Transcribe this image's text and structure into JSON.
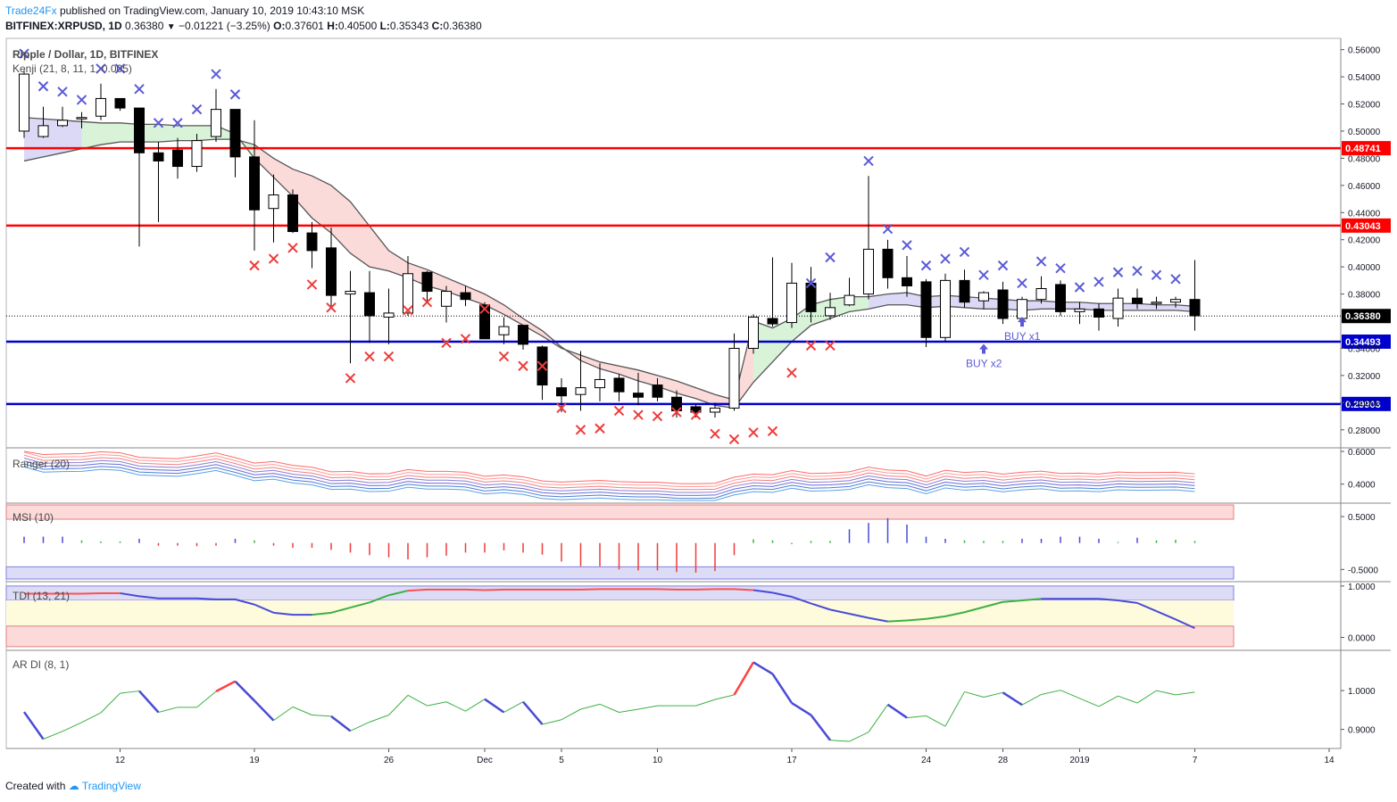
{
  "header": {
    "author": "Trade24Fx",
    "published_text": "published on TradingView.com, January 10, 2019 10:43:10 MSK",
    "symbol": "BITFINEX:XRPUSD, 1D",
    "last": "0.36380",
    "change": "−0.01221 (−3.25%)",
    "o_label": "O:",
    "o": "0.37601",
    "h_label": "H:",
    "h": "0.40500",
    "l_label": "L:",
    "l": "0.35343",
    "c_label": "C:",
    "c": "0.36380"
  },
  "legend": {
    "title": "Ripple / Dollar, 1D, BITFINEX",
    "indicator": "Kenji (21, 8, 11, 1, 0.005)",
    "ranger": "Ranger (20)",
    "msi": "MSI (10)",
    "tdi": "TDI (13, 21)",
    "ardi": "AR DI (8, 1)"
  },
  "footer": {
    "created_with": "Created with",
    "brand": "TradingView"
  },
  "colors": {
    "up": "#ffffff",
    "down": "#000000",
    "resistance": "#ff0000",
    "support": "#0000cc",
    "buy_marker": "#5b5bd6",
    "sell_marker": "#ef3b3b",
    "band_line": "#555555"
  },
  "chart_data": [
    {
      "type": "candlestick",
      "title": "Ripple / Dollar, 1D, BITFINEX",
      "ylim": [
        0.27,
        0.567
      ],
      "y_ticks": [
        "0.56000",
        "0.54000",
        "0.52000",
        "0.50000",
        "0.48000",
        "0.46000",
        "0.44000",
        "0.42000",
        "0.40000",
        "0.38000",
        "0.34000",
        "0.32000",
        "0.30000",
        "0.28000"
      ],
      "x_ticks": [
        "12",
        "19",
        "26",
        "Dec",
        "5",
        "10",
        "17",
        "24",
        "28",
        "2019",
        "7",
        "14"
      ],
      "x_tick_index": [
        5,
        12,
        19,
        24,
        28,
        33,
        40,
        47,
        51,
        55,
        61,
        68
      ],
      "candles": [
        {
          "o": 0.5,
          "h": 0.545,
          "l": 0.495,
          "c": 0.542
        },
        {
          "o": 0.496,
          "h": 0.518,
          "l": 0.495,
          "c": 0.504
        },
        {
          "o": 0.504,
          "h": 0.518,
          "l": 0.503,
          "c": 0.508
        },
        {
          "o": 0.509,
          "h": 0.514,
          "l": 0.502,
          "c": 0.51
        },
        {
          "o": 0.511,
          "h": 0.535,
          "l": 0.508,
          "c": 0.524
        },
        {
          "o": 0.524,
          "h": 0.524,
          "l": 0.515,
          "c": 0.517
        },
        {
          "o": 0.517,
          "h": 0.517,
          "l": 0.415,
          "c": 0.484
        },
        {
          "o": 0.484,
          "h": 0.492,
          "l": 0.433,
          "c": 0.478
        },
        {
          "o": 0.486,
          "h": 0.495,
          "l": 0.465,
          "c": 0.474
        },
        {
          "o": 0.474,
          "h": 0.498,
          "l": 0.47,
          "c": 0.493
        },
        {
          "o": 0.496,
          "h": 0.531,
          "l": 0.492,
          "c": 0.516
        },
        {
          "o": 0.516,
          "h": 0.516,
          "l": 0.466,
          "c": 0.481
        },
        {
          "o": 0.481,
          "h": 0.508,
          "l": 0.412,
          "c": 0.442
        },
        {
          "o": 0.443,
          "h": 0.468,
          "l": 0.418,
          "c": 0.453
        },
        {
          "o": 0.453,
          "h": 0.457,
          "l": 0.425,
          "c": 0.426
        },
        {
          "o": 0.425,
          "h": 0.433,
          "l": 0.399,
          "c": 0.412
        },
        {
          "o": 0.414,
          "h": 0.429,
          "l": 0.369,
          "c": 0.379
        },
        {
          "o": 0.38,
          "h": 0.397,
          "l": 0.329,
          "c": 0.382
        },
        {
          "o": 0.381,
          "h": 0.397,
          "l": 0.344,
          "c": 0.364
        },
        {
          "o": 0.363,
          "h": 0.384,
          "l": 0.343,
          "c": 0.366
        },
        {
          "o": 0.366,
          "h": 0.408,
          "l": 0.364,
          "c": 0.395
        },
        {
          "o": 0.396,
          "h": 0.397,
          "l": 0.374,
          "c": 0.382
        },
        {
          "o": 0.371,
          "h": 0.386,
          "l": 0.359,
          "c": 0.382
        },
        {
          "o": 0.381,
          "h": 0.386,
          "l": 0.371,
          "c": 0.376
        },
        {
          "o": 0.372,
          "h": 0.374,
          "l": 0.349,
          "c": 0.347
        },
        {
          "o": 0.35,
          "h": 0.363,
          "l": 0.343,
          "c": 0.356
        },
        {
          "o": 0.357,
          "h": 0.357,
          "l": 0.339,
          "c": 0.343
        },
        {
          "o": 0.341,
          "h": 0.342,
          "l": 0.302,
          "c": 0.313
        },
        {
          "o": 0.311,
          "h": 0.318,
          "l": 0.293,
          "c": 0.305
        },
        {
          "o": 0.306,
          "h": 0.338,
          "l": 0.294,
          "c": 0.311
        },
        {
          "o": 0.311,
          "h": 0.329,
          "l": 0.301,
          "c": 0.317
        },
        {
          "o": 0.318,
          "h": 0.321,
          "l": 0.301,
          "c": 0.308
        },
        {
          "o": 0.307,
          "h": 0.322,
          "l": 0.298,
          "c": 0.304
        },
        {
          "o": 0.313,
          "h": 0.318,
          "l": 0.301,
          "c": 0.304
        },
        {
          "o": 0.304,
          "h": 0.309,
          "l": 0.289,
          "c": 0.294
        },
        {
          "o": 0.297,
          "h": 0.299,
          "l": 0.289,
          "c": 0.293
        },
        {
          "o": 0.293,
          "h": 0.3,
          "l": 0.289,
          "c": 0.296
        },
        {
          "o": 0.296,
          "h": 0.351,
          "l": 0.294,
          "c": 0.34
        },
        {
          "o": 0.34,
          "h": 0.365,
          "l": 0.336,
          "c": 0.363
        },
        {
          "o": 0.362,
          "h": 0.407,
          "l": 0.356,
          "c": 0.358
        },
        {
          "o": 0.359,
          "h": 0.403,
          "l": 0.355,
          "c": 0.388
        },
        {
          "o": 0.388,
          "h": 0.4,
          "l": 0.359,
          "c": 0.367
        },
        {
          "o": 0.364,
          "h": 0.381,
          "l": 0.361,
          "c": 0.37
        },
        {
          "o": 0.372,
          "h": 0.392,
          "l": 0.371,
          "c": 0.379
        },
        {
          "o": 0.38,
          "h": 0.467,
          "l": 0.376,
          "c": 0.413
        },
        {
          "o": 0.413,
          "h": 0.42,
          "l": 0.384,
          "c": 0.392
        },
        {
          "o": 0.392,
          "h": 0.408,
          "l": 0.378,
          "c": 0.386
        },
        {
          "o": 0.389,
          "h": 0.391,
          "l": 0.341,
          "c": 0.348
        },
        {
          "o": 0.348,
          "h": 0.395,
          "l": 0.345,
          "c": 0.39
        },
        {
          "o": 0.39,
          "h": 0.398,
          "l": 0.37,
          "c": 0.374
        },
        {
          "o": 0.375,
          "h": 0.382,
          "l": 0.369,
          "c": 0.381
        },
        {
          "o": 0.383,
          "h": 0.389,
          "l": 0.358,
          "c": 0.362
        },
        {
          "o": 0.362,
          "h": 0.378,
          "l": 0.359,
          "c": 0.376
        },
        {
          "o": 0.376,
          "h": 0.393,
          "l": 0.373,
          "c": 0.384
        },
        {
          "o": 0.387,
          "h": 0.39,
          "l": 0.364,
          "c": 0.367
        },
        {
          "o": 0.367,
          "h": 0.374,
          "l": 0.358,
          "c": 0.369
        },
        {
          "o": 0.369,
          "h": 0.373,
          "l": 0.353,
          "c": 0.363
        },
        {
          "o": 0.362,
          "h": 0.384,
          "l": 0.356,
          "c": 0.377
        },
        {
          "o": 0.377,
          "h": 0.384,
          "l": 0.369,
          "c": 0.373
        },
        {
          "o": 0.374,
          "h": 0.378,
          "l": 0.369,
          "c": 0.374
        },
        {
          "o": 0.374,
          "h": 0.378,
          "l": 0.37,
          "c": 0.376
        },
        {
          "o": 0.376,
          "h": 0.405,
          "l": 0.353,
          "c": 0.364
        }
      ],
      "upper_band": [
        0.51,
        0.509,
        0.508,
        0.507,
        0.506,
        0.506,
        0.505,
        0.505,
        0.504,
        0.504,
        0.504,
        0.498,
        0.48,
        0.466,
        0.452,
        0.436,
        0.425,
        0.41,
        0.4,
        0.397,
        0.392,
        0.386,
        0.382,
        0.377,
        0.372,
        0.365,
        0.357,
        0.349,
        0.34,
        0.335,
        0.33,
        0.327,
        0.324,
        0.32,
        0.316,
        0.311,
        0.306,
        0.302,
        0.36,
        0.355,
        0.362,
        0.372,
        0.376,
        0.378,
        0.378,
        0.38,
        0.381,
        0.378,
        0.379,
        0.378,
        0.377,
        0.376,
        0.375,
        0.375,
        0.374,
        0.374,
        0.373,
        0.373,
        0.373,
        0.372,
        0.372,
        0.371
      ],
      "lower_band": [
        0.478,
        0.481,
        0.484,
        0.487,
        0.49,
        0.492,
        0.492,
        0.492,
        0.493,
        0.493,
        0.494,
        0.494,
        0.49,
        0.48,
        0.472,
        0.467,
        0.46,
        0.448,
        0.43,
        0.412,
        0.403,
        0.398,
        0.392,
        0.386,
        0.38,
        0.372,
        0.362,
        0.353,
        0.341,
        0.331,
        0.325,
        0.321,
        0.316,
        0.312,
        0.307,
        0.303,
        0.298,
        0.296,
        0.315,
        0.33,
        0.345,
        0.357,
        0.362,
        0.367,
        0.369,
        0.372,
        0.372,
        0.37,
        0.371,
        0.37,
        0.369,
        0.369,
        0.368,
        0.369,
        0.369,
        0.369,
        0.368,
        0.368,
        0.368,
        0.368,
        0.368,
        0.367
      ],
      "horizontal_levels": [
        {
          "value": 0.48741,
          "label": "0.48741",
          "color": "#ff0000"
        },
        {
          "value": 0.43043,
          "label": "0.43043",
          "color": "#ff0000"
        },
        {
          "value": 0.34493,
          "label": "0.34493",
          "color": "#0000cc"
        },
        {
          "value": 0.29903,
          "label": "0.29903",
          "color": "#0000cc"
        }
      ],
      "last_price": {
        "value": 0.3638,
        "label": "0.36380"
      },
      "upper_markers": [
        {
          "i": 0,
          "v": 0.557
        },
        {
          "i": 1,
          "v": 0.533
        },
        {
          "i": 2,
          "v": 0.529
        },
        {
          "i": 3,
          "v": 0.523
        },
        {
          "i": 4,
          "v": 0.546
        },
        {
          "i": 5,
          "v": 0.546
        },
        {
          "i": 6,
          "v": 0.531
        },
        {
          "i": 7,
          "v": 0.506
        },
        {
          "i": 8,
          "v": 0.506
        },
        {
          "i": 9,
          "v": 0.516
        },
        {
          "i": 10,
          "v": 0.542
        },
        {
          "i": 11,
          "v": 0.527
        },
        {
          "i": 44,
          "v": 0.478
        },
        {
          "i": 45,
          "v": 0.428
        },
        {
          "i": 46,
          "v": 0.416
        },
        {
          "i": 47,
          "v": 0.401
        },
        {
          "i": 48,
          "v": 0.406
        },
        {
          "i": 49,
          "v": 0.411
        },
        {
          "i": 50,
          "v": 0.394
        },
        {
          "i": 51,
          "v": 0.401
        },
        {
          "i": 52,
          "v": 0.388
        },
        {
          "i": 53,
          "v": 0.404
        },
        {
          "i": 54,
          "v": 0.399
        },
        {
          "i": 55,
          "v": 0.385
        },
        {
          "i": 56,
          "v": 0.389
        },
        {
          "i": 57,
          "v": 0.396
        },
        {
          "i": 58,
          "v": 0.397
        },
        {
          "i": 59,
          "v": 0.394
        },
        {
          "i": 60,
          "v": 0.391
        },
        {
          "i": 41,
          "v": 0.388
        },
        {
          "i": 42,
          "v": 0.407
        }
      ],
      "lower_markers": [
        {
          "i": 12,
          "v": 0.401
        },
        {
          "i": 13,
          "v": 0.406
        },
        {
          "i": 14,
          "v": 0.414
        },
        {
          "i": 15,
          "v": 0.387
        },
        {
          "i": 16,
          "v": 0.37
        },
        {
          "i": 17,
          "v": 0.318
        },
        {
          "i": 18,
          "v": 0.334
        },
        {
          "i": 19,
          "v": 0.334
        },
        {
          "i": 20,
          "v": 0.368
        },
        {
          "i": 21,
          "v": 0.374
        },
        {
          "i": 22,
          "v": 0.344
        },
        {
          "i": 23,
          "v": 0.347
        },
        {
          "i": 24,
          "v": 0.369
        },
        {
          "i": 25,
          "v": 0.334
        },
        {
          "i": 26,
          "v": 0.327
        },
        {
          "i": 27,
          "v": 0.327
        },
        {
          "i": 28,
          "v": 0.296
        },
        {
          "i": 29,
          "v": 0.28
        },
        {
          "i": 30,
          "v": 0.281
        },
        {
          "i": 31,
          "v": 0.294
        },
        {
          "i": 32,
          "v": 0.291
        },
        {
          "i": 33,
          "v": 0.29
        },
        {
          "i": 34,
          "v": 0.293
        },
        {
          "i": 35,
          "v": 0.291
        },
        {
          "i": 36,
          "v": 0.277
        },
        {
          "i": 37,
          "v": 0.273
        },
        {
          "i": 38,
          "v": 0.278
        },
        {
          "i": 39,
          "v": 0.279
        },
        {
          "i": 40,
          "v": 0.322
        },
        {
          "i": 41,
          "v": 0.342
        },
        {
          "i": 42,
          "v": 0.342
        }
      ],
      "annotations": [
        {
          "i": 50,
          "v": 0.338,
          "text": "BUY x2"
        },
        {
          "i": 52,
          "v": 0.358,
          "text": "BUY x1"
        }
      ]
    },
    {
      "type": "line",
      "name": "Ranger (20)",
      "ylim": [
        0.3,
        0.6
      ],
      "y_ticks": [
        "0.6000",
        "0.4000"
      ]
    },
    {
      "type": "bar",
      "name": "MSI (10)",
      "ylim": [
        -0.68,
        0.72
      ],
      "y_ticks": [
        "0.5000",
        "-0.5000"
      ],
      "values": [
        0.12,
        0.12,
        0.12,
        0.05,
        0.03,
        0.03,
        0.08,
        -0.05,
        -0.05,
        -0.06,
        -0.05,
        0.08,
        0.05,
        -0.05,
        -0.09,
        -0.09,
        -0.13,
        -0.18,
        -0.23,
        -0.27,
        -0.31,
        -0.27,
        -0.24,
        -0.18,
        -0.18,
        -0.14,
        -0.18,
        -0.22,
        -0.35,
        -0.44,
        -0.44,
        -0.5,
        -0.52,
        -0.52,
        -0.55,
        -0.56,
        -0.53,
        -0.23,
        0.07,
        0.05,
        -0.02,
        0.04,
        0.04,
        0.26,
        0.38,
        0.47,
        0.35,
        0.12,
        0.08,
        0.05,
        0.04,
        0.04,
        0.08,
        0.08,
        0.12,
        0.12,
        0.08,
        0.02,
        0.1,
        0.05,
        0.06,
        0.04,
        0.08,
        -0.04,
        0.0,
        0.0
      ]
    },
    {
      "type": "line",
      "name": "TDI (13, 21)",
      "ylim": [
        -0.2,
        1.05
      ],
      "y_ticks": [
        "1.0000",
        "0.0000"
      ]
    },
    {
      "type": "line",
      "name": "AR DI (8, 1)",
      "ylim": [
        0.86,
        1.09
      ],
      "y_ticks": [
        "1.0000",
        "0.9000"
      ],
      "values": [
        0.945,
        0.875,
        0.895,
        0.918,
        0.943,
        0.993,
        0.999,
        0.944,
        0.957,
        0.957,
        0.998,
        1.024,
        0.974,
        0.923,
        0.958,
        0.937,
        0.934,
        0.896,
        0.919,
        0.937,
        0.988,
        0.961,
        0.971,
        0.947,
        0.978,
        0.944,
        0.971,
        0.913,
        0.925,
        0.952,
        0.965,
        0.944,
        0.952,
        0.961,
        0.961,
        0.961,
        0.977,
        0.989,
        1.073,
        1.043,
        0.968,
        0.937,
        0.872,
        0.869,
        0.893,
        0.964,
        0.93,
        0.935,
        0.908,
        0.997,
        0.983,
        0.995,
        0.963,
        0.99,
        1.001,
        0.98,
        0.959,
        0.986,
        0.968,
        1.0,
        0.989,
        0.996,
        1.0,
        0.973
      ]
    }
  ]
}
